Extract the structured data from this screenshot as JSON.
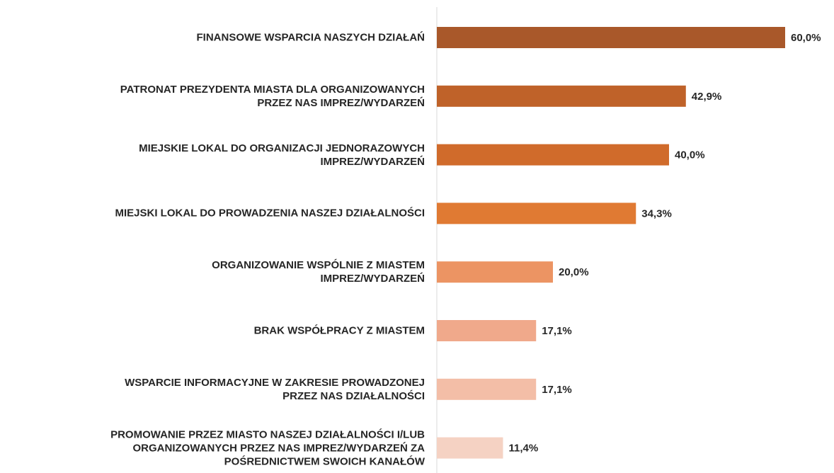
{
  "chart_data": {
    "type": "bar",
    "orientation": "horizontal",
    "categories": [
      "FINANSOWE WSPARCIA NASZYCH DZIAŁAŃ",
      "PATRONAT PREZYDENTA MIASTA DLA ORGANIZOWANYCH\nPRZEZ NAS IMPREZ/WYDARZEŃ",
      "MIEJSKIE LOKAL DO ORGANIZACJI JEDNORAZOWYCH\nIMPREZ/WYDARZEŃ",
      "MIEJSKI LOKAL DO PROWADZENIA NASZEJ DZIAŁALNOŚCI",
      "ORGANIZOWANIE WSPÓLNIE Z MIASTEM\nIMPREZ/WYDARZEŃ",
      "BRAK WSPÓŁPRACY Z MIASTEM",
      "WSPARCIE INFORMACYJNE W ZAKRESIE PROWADZONEJ\nPRZEZ NAS DZIAŁALNOŚCI",
      "PROMOWANIE PRZEZ MIASTO NASZEJ DZIAŁALNOŚCI I/LUB\nORGANIZOWANYCH PRZEZ NAS IMPREZ/WYDARZEŃ ZA\nPOŚREDNICTWEM SWOICH KANAŁÓW"
    ],
    "values": [
      60.0,
      42.9,
      40.0,
      34.3,
      20.0,
      17.1,
      17.1,
      11.4
    ],
    "value_labels": [
      "60,0%",
      "42,9%",
      "40,0%",
      "34,3%",
      "20,0%",
      "17,1%",
      "17,1%",
      "11,4%"
    ],
    "colors": [
      "#a9582a",
      "#bf6229",
      "#d06b2b",
      "#e07a33",
      "#ec9463",
      "#f0a98b",
      "#f3bea7",
      "#f5d2c3"
    ],
    "xlim": [
      0,
      60
    ]
  }
}
